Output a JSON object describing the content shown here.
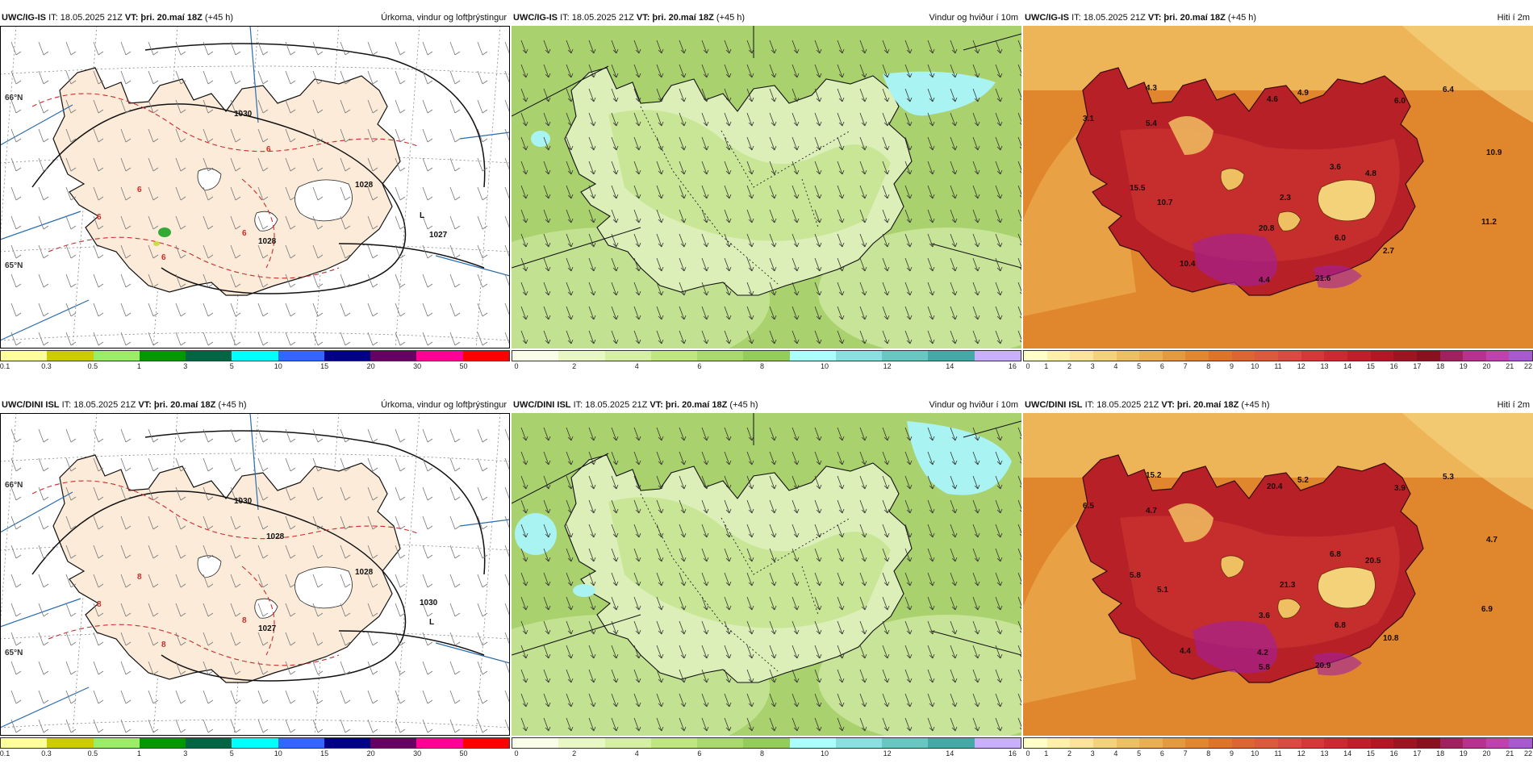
{
  "panels": [
    {
      "id": "p1",
      "model": "UWC/IG-IS",
      "it": "IT: 18.05.2025 21Z",
      "vt_label": "VT:",
      "vt": "þri. 20.maí 18Z",
      "lead": "(+45 h)",
      "title": "Úrkoma, vindur og loftþrýstingur",
      "type": "precip",
      "colorbar": {
        "colors": [
          "#ffff99",
          "#cccc00",
          "#99ee66",
          "#009900",
          "#006644",
          "#00ffff",
          "#3366ff",
          "#000088",
          "#660066",
          "#ff0099",
          "#ff0000"
        ],
        "ticks": [
          "0.1",
          "0.3",
          "0.5",
          "1",
          "3",
          "5",
          "10",
          "15",
          "20",
          "30",
          "50"
        ]
      },
      "labels": [
        "1030",
        "1028",
        "1028",
        "1027",
        "L",
        "6",
        "6",
        "6",
        "6",
        "6",
        "66°N",
        "65°N"
      ]
    },
    {
      "id": "p2",
      "model": "UWC/IG-IS",
      "it": "IT: 18.05.2025 21Z",
      "vt_label": "VT:",
      "vt": "þri. 20.maí 18Z",
      "lead": "(+45 h)",
      "title": "Vindur og hviður í 10m",
      "type": "wind",
      "colorbar": {
        "colors": [
          "#fafde8",
          "#e8f7c4",
          "#d4f0a0",
          "#c0e77e",
          "#a8d96a",
          "#94cc58",
          "#aaffff",
          "#88e0e0",
          "#66c8c0",
          "#44aaa8",
          "#c8b0ff"
        ],
        "ticks": [
          "0",
          "2",
          "4",
          "6",
          "8",
          "10",
          "12",
          "14",
          "16"
        ]
      }
    },
    {
      "id": "p3",
      "model": "UWC/IG-IS",
      "it": "IT: 18.05.2025 21Z",
      "vt_label": "VT:",
      "vt": "þri. 20.maí 18Z",
      "lead": "(+45 h)",
      "title": "Hiti í 2m",
      "type": "temp",
      "colorbar": {
        "colors": [
          "#ffffc8",
          "#fff0a8",
          "#fbe49a",
          "#f4d27a",
          "#efc062",
          "#ebae50",
          "#e69a3e",
          "#e3872e",
          "#e07326",
          "#de6430",
          "#dc5a3a",
          "#d84a42",
          "#d23a3a",
          "#c82c30",
          "#bc2028",
          "#b01826",
          "#9e1420",
          "#8a1020",
          "#a02060",
          "#b83090",
          "#c040b0",
          "#a858d0"
        ],
        "ticks": [
          "0",
          "1",
          "2",
          "3",
          "4",
          "5",
          "6",
          "7",
          "8",
          "9",
          "10",
          "11",
          "12",
          "13",
          "14",
          "15",
          "16",
          "17",
          "18",
          "19",
          "20",
          "21",
          "22"
        ]
      },
      "values": [
        "3.1",
        "4.3",
        "4.6",
        "4.9",
        "5.4",
        "6.0",
        "6.4",
        "15.5",
        "10.7",
        "3.6",
        "4.8",
        "2.3",
        "10.9",
        "20.8",
        "6.0",
        "11.2",
        "10.4",
        "2.7",
        "21.6",
        "4.4"
      ]
    },
    {
      "id": "p4",
      "model": "UWC/DINI ISL",
      "it": "IT: 18.05.2025 21Z",
      "vt_label": "VT:",
      "vt": "þri. 20.maí 18Z",
      "lead": "(+45 h)",
      "title": "Úrkoma, vindur og loftþrýstingur",
      "type": "precip",
      "colorbar": {
        "colors": [
          "#ffff99",
          "#cccc00",
          "#99ee66",
          "#009900",
          "#006644",
          "#00ffff",
          "#3366ff",
          "#000088",
          "#660066",
          "#ff0099",
          "#ff0000"
        ],
        "ticks": [
          "0.1",
          "0.3",
          "0.5",
          "1",
          "3",
          "5",
          "10",
          "15",
          "20",
          "30",
          "50"
        ]
      },
      "labels": [
        "1030",
        "1028",
        "1027",
        "L",
        "1030",
        "1028",
        "8",
        "8",
        "8",
        "8",
        "66°N",
        "65°N"
      ]
    },
    {
      "id": "p5",
      "model": "UWC/DINI ISL",
      "it": "IT: 18.05.2025 21Z",
      "vt_label": "VT:",
      "vt": "þri. 20.maí 18Z",
      "lead": "(+45 h)",
      "title": "Vindur og hviður í 10m",
      "type": "wind",
      "colorbar": {
        "colors": [
          "#fafde8",
          "#e8f7c4",
          "#d4f0a0",
          "#c0e77e",
          "#a8d96a",
          "#94cc58",
          "#aaffff",
          "#88e0e0",
          "#66c8c0",
          "#44aaa8",
          "#c8b0ff"
        ],
        "ticks": [
          "0",
          "2",
          "4",
          "6",
          "8",
          "10",
          "12",
          "14",
          "16"
        ]
      }
    },
    {
      "id": "p6",
      "model": "UWC/DINI ISL",
      "it": "IT: 18.05.2025 21Z",
      "vt_label": "VT:",
      "vt": "þri. 20.maí 18Z",
      "lead": "(+45 h)",
      "title": "Hiti í 2m",
      "type": "temp",
      "colorbar": {
        "colors": [
          "#ffffc8",
          "#fff0a8",
          "#fbe49a",
          "#f4d27a",
          "#efc062",
          "#ebae50",
          "#e69a3e",
          "#e3872e",
          "#e07326",
          "#de6430",
          "#dc5a3a",
          "#d84a42",
          "#d23a3a",
          "#c82c30",
          "#bc2028",
          "#b01826",
          "#9e1420",
          "#8a1020",
          "#a02060",
          "#b83090",
          "#c040b0",
          "#a858d0"
        ],
        "ticks": [
          "0",
          "1",
          "2",
          "3",
          "4",
          "5",
          "6",
          "7",
          "8",
          "9",
          "10",
          "11",
          "12",
          "13",
          "14",
          "15",
          "16",
          "17",
          "18",
          "19",
          "20",
          "21",
          "22"
        ]
      },
      "values": [
        "6.5",
        "15.2",
        "20.4",
        "5.2",
        "4.7",
        "3.9",
        "5.3",
        "5.8",
        "5.1",
        "6.8",
        "20.5",
        "21.3",
        "4.7",
        "3.6",
        "6.8",
        "6.9",
        "4.4",
        "10.8",
        "20.9",
        "5.8",
        "4.2"
      ]
    }
  ]
}
